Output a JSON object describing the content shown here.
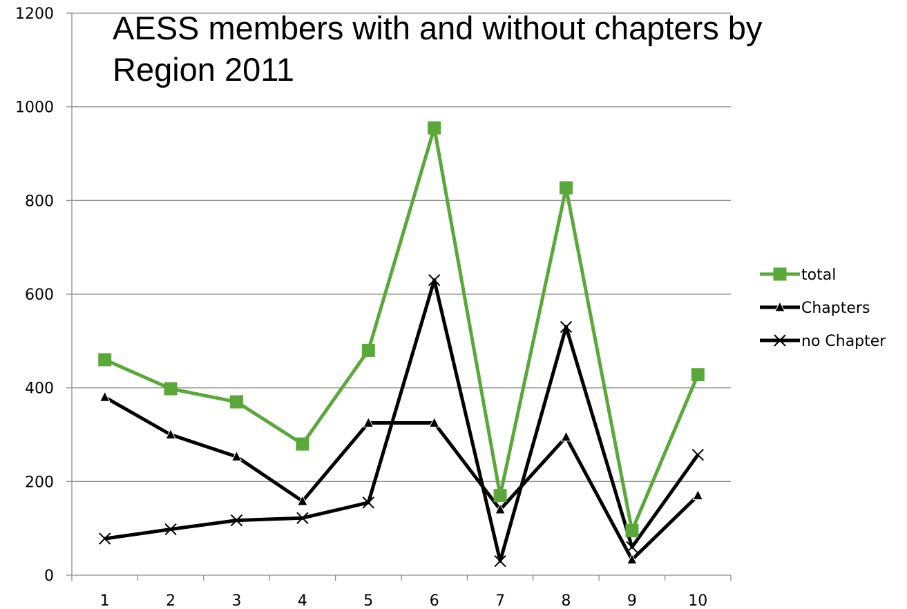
{
  "chart_data": {
    "type": "line",
    "title_lines": [
      "AESS members  with and without chapters by",
      "Region 2011"
    ],
    "xlabel": "",
    "ylabel": "",
    "categories": [
      "1",
      "2",
      "3",
      "4",
      "5",
      "6",
      "7",
      "8",
      "9",
      "10"
    ],
    "ylim": [
      0,
      1200
    ],
    "yticks": [
      0,
      200,
      400,
      600,
      800,
      1000,
      1200
    ],
    "grid": true,
    "legend_position": "right",
    "series": [
      {
        "name": "total",
        "color": "#5aa83a",
        "marker": "square",
        "values": [
          460,
          398,
          370,
          280,
          480,
          955,
          170,
          827,
          95,
          428
        ]
      },
      {
        "name": "Chapters",
        "color": "#000000",
        "marker": "triangle",
        "values": [
          380,
          300,
          253,
          158,
          325,
          325,
          140,
          295,
          33,
          170
        ]
      },
      {
        "name": "no Chapter",
        "color": "#000000",
        "marker": "x",
        "values": [
          78,
          98,
          117,
          122,
          155,
          630,
          30,
          530,
          60,
          257
        ]
      }
    ]
  }
}
